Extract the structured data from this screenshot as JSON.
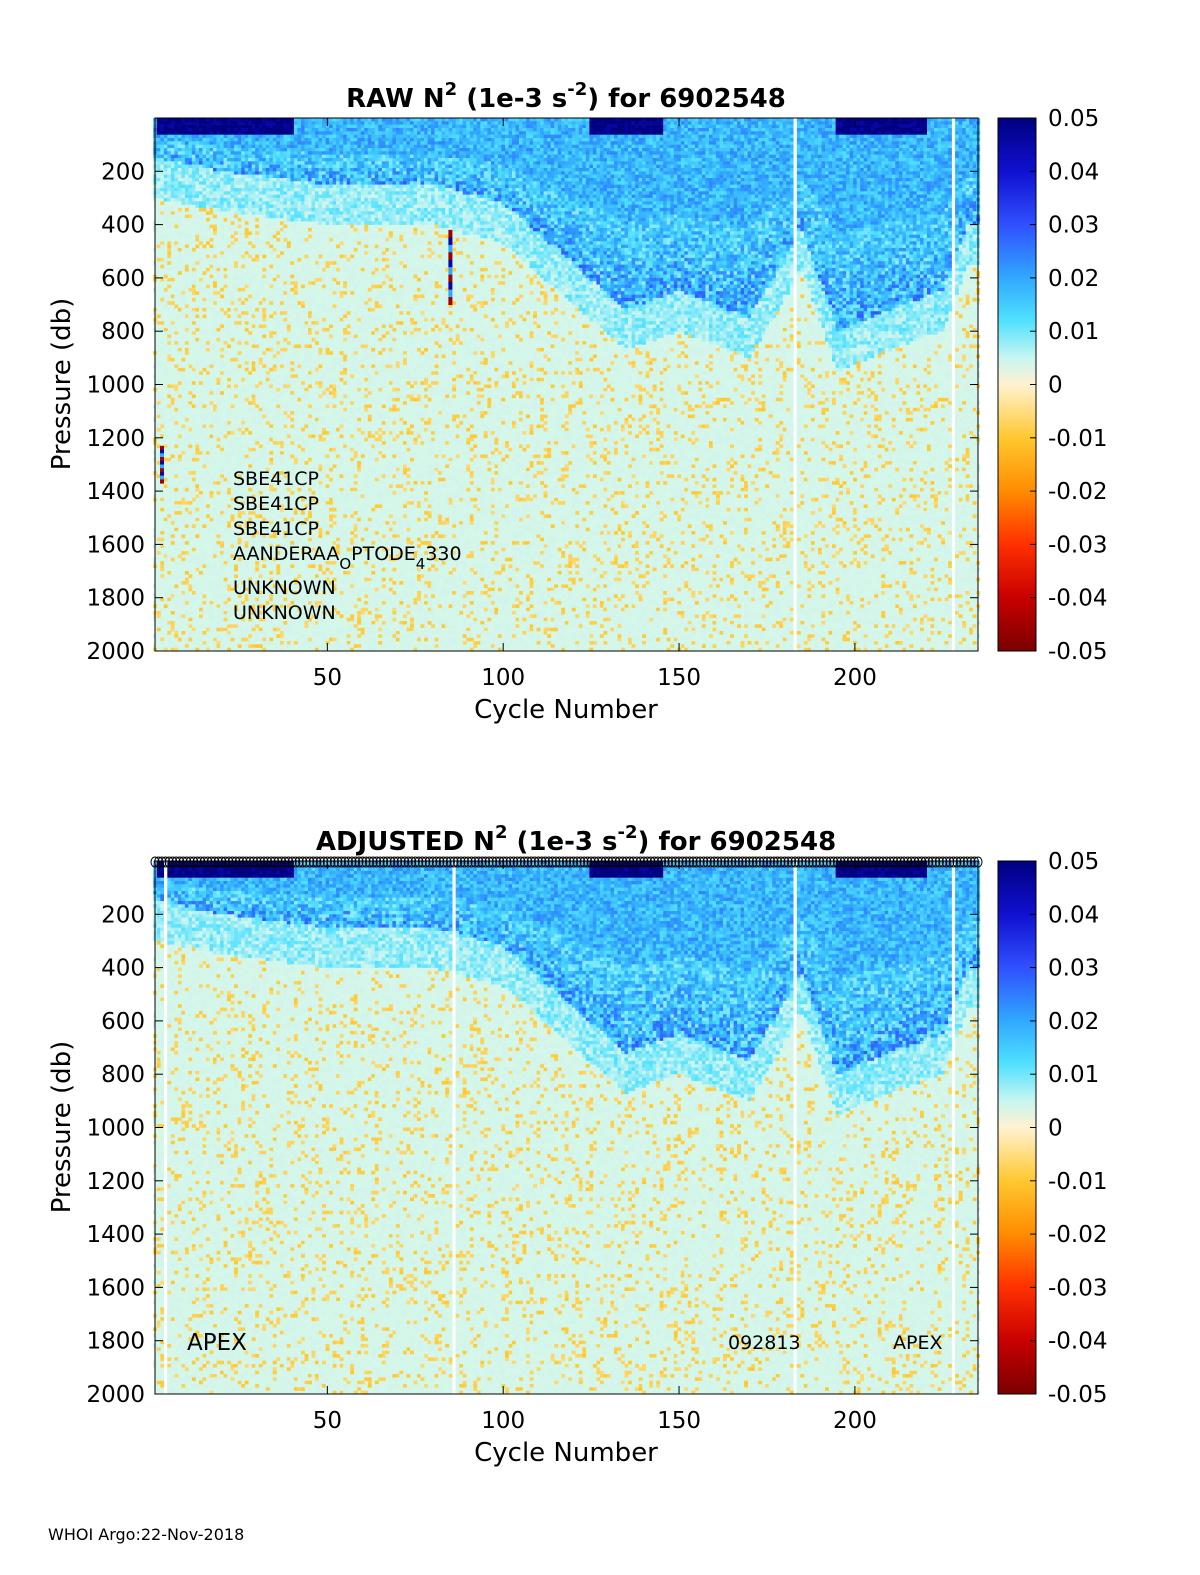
{
  "chart_data": [
    {
      "type": "heatmap",
      "title": {
        "prefix": "RAW N",
        "sup1": "2",
        "mid": " (1e-3 s",
        "sup2": "-2",
        "suffix": ") for 6902548"
      },
      "xlabel": "Cycle Number",
      "ylabel": "Pressure (db)",
      "xlim": [
        1,
        235
      ],
      "ylim": [
        2000,
        0
      ],
      "y_reversed": true,
      "xticks": [
        "50",
        "100",
        "150",
        "200"
      ],
      "yticks": [
        "200",
        "400",
        "600",
        "800",
        "1000",
        "1200",
        "1400",
        "1600",
        "1800",
        "2000"
      ],
      "colorbar": {
        "range": [
          -0.05,
          0.05
        ],
        "colormap": "jet-like (dark red - red - orange - cream at 0 - cyan - blue - dark blue)",
        "ticks": [
          "0.05",
          "0.04",
          "0.03",
          "0.02",
          "0.01",
          "0",
          "-0.01",
          "-0.02",
          "-0.03",
          "-0.04",
          "-0.05"
        ]
      },
      "features": {
        "strong_positive_near_surface_cycles": [
          [
            2,
            40
          ],
          [
            125,
            145
          ],
          [
            195,
            220
          ]
        ],
        "thermocline_base_pressure_by_cycle": [
          [
            1,
            150
          ],
          [
            20,
            200
          ],
          [
            50,
            250
          ],
          [
            80,
            250
          ],
          [
            100,
            320
          ],
          [
            120,
            550
          ],
          [
            135,
            720
          ],
          [
            150,
            650
          ],
          [
            170,
            750
          ],
          [
            185,
            420
          ],
          [
            195,
            800
          ],
          [
            210,
            720
          ],
          [
            225,
            650
          ],
          [
            232,
            400
          ]
        ],
        "gaps_cycles": [
          183,
          228
        ],
        "spike_columns": [
          {
            "cycle": 85,
            "p_range": [
              420,
              700
            ]
          },
          {
            "cycle": 3,
            "p_range": [
              1230,
              1370
            ]
          }
        ]
      },
      "annotations": {
        "sensors": [
          "SBE41CP",
          "SBE41CP",
          "SBE41CP",
          "AANDERAA_OPTODE_4330",
          "UNKNOWN",
          "UNKNOWN"
        ],
        "optode": {
          "a": "AANDERAA",
          "s1": "O",
          "b": "PTODE",
          "s2": "4",
          "c": "330"
        }
      }
    },
    {
      "type": "heatmap",
      "title": {
        "prefix": "ADJUSTED N",
        "sup1": "2",
        "mid": " (1e-3 s",
        "sup2": "-2",
        "suffix": ") for 6902548"
      },
      "xlabel": "Cycle Number",
      "ylabel": "Pressure (db)",
      "xlim": [
        1,
        235
      ],
      "ylim": [
        2000,
        0
      ],
      "y_reversed": true,
      "xticks": [
        "50",
        "100",
        "150",
        "200"
      ],
      "yticks": [
        "200",
        "400",
        "600",
        "800",
        "1000",
        "1200",
        "1400",
        "1600",
        "1800",
        "2000"
      ],
      "colorbar": {
        "range": [
          -0.05,
          0.05
        ],
        "ticks": [
          "0.05",
          "0.04",
          "0.03",
          "0.02",
          "0.01",
          "0",
          "-0.01",
          "-0.02",
          "-0.03",
          "-0.04",
          "-0.05"
        ]
      },
      "features": {
        "gaps_cycles": [
          4,
          86,
          183,
          228
        ],
        "top_circle_markers": "one 'o' per cycle along the top edge"
      },
      "annotations": {
        "left_label": "APEX",
        "mid_label": "092813",
        "right_label": "APEX"
      }
    }
  ],
  "footer": "WHOI Argo:22-Nov-2018"
}
